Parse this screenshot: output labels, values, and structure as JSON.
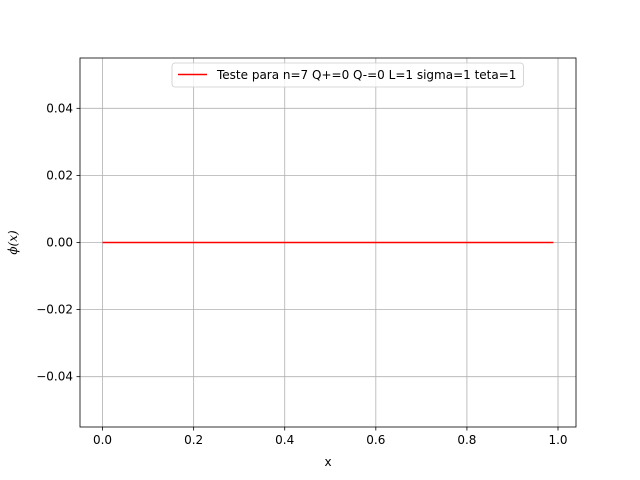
{
  "chart_data": {
    "type": "line",
    "title": "",
    "xlabel": "x",
    "ylabel": "ϕ(x)",
    "xlim": [
      -0.0495,
      1.0395
    ],
    "ylim": [
      -0.055,
      0.055
    ],
    "xticks": [
      0.0,
      0.2,
      0.4,
      0.6,
      0.8,
      1.0
    ],
    "xtick_labels": [
      "0.0",
      "0.2",
      "0.4",
      "0.6",
      "0.8",
      "1.0"
    ],
    "yticks": [
      -0.04,
      -0.02,
      0.0,
      0.02,
      0.04
    ],
    "ytick_labels": [
      "−0.04",
      "−0.02",
      "0.00",
      "0.02",
      "0.04"
    ],
    "grid": true,
    "legend_position": "top-right",
    "series": [
      {
        "name": "Teste para n=7 Q+=0 Q-=0 L=1 sigma=1 teta=1",
        "color": "#ff0000",
        "x": [
          0.0,
          0.99
        ],
        "y": [
          0.0,
          0.0
        ]
      }
    ]
  }
}
